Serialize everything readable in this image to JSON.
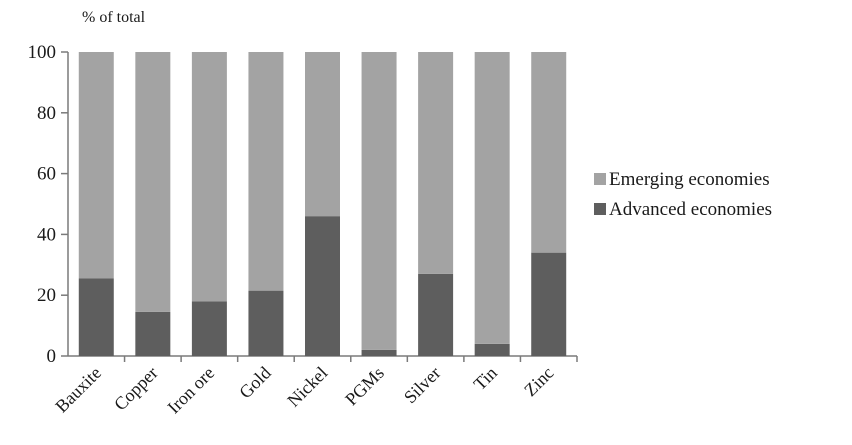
{
  "chart_data": {
    "type": "bar",
    "stacked": true,
    "unit_label": "% of total",
    "categories": [
      "Bauxite",
      "Copper",
      "Iron ore",
      "Gold",
      "Nickel",
      "PGMs",
      "Silver",
      "Tin",
      "Zinc"
    ],
    "series": [
      {
        "name": "Advanced economies",
        "color": "#5e5e5e",
        "values": [
          25.5,
          14.5,
          18,
          21.5,
          46,
          2,
          27,
          4,
          34
        ]
      },
      {
        "name": "Emerging economies",
        "color": "#a3a3a3",
        "values": [
          74.5,
          85.5,
          82,
          78.5,
          54,
          98,
          73,
          96,
          66
        ]
      }
    ],
    "ylim": [
      0,
      100
    ],
    "yticks": [
      0,
      20,
      40,
      60,
      80,
      100
    ],
    "grid": false,
    "legend": {
      "placement": "right",
      "order": [
        "Emerging economies",
        "Advanced economies"
      ]
    }
  }
}
